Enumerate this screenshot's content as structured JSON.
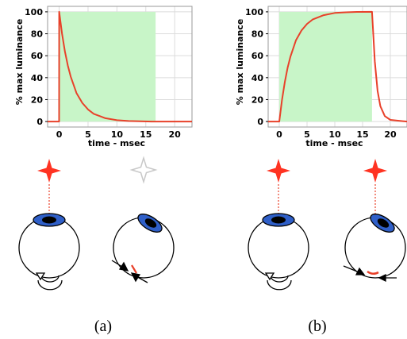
{
  "colors": {
    "trace": "#e8412a",
    "frame_window": "#c8f5c8",
    "grid": "#dcdcdc",
    "star_red": "#ff3322",
    "star_gray": "#c8c8c8",
    "iris": "#2f5fc8",
    "pupil": "#000000"
  },
  "chart_data": [
    {
      "type": "line",
      "panel": "(a)",
      "xlabel": "time - msec",
      "ylabel": "% max luminance",
      "xlim": [
        -2,
        23
      ],
      "ylim": [
        -5,
        105
      ],
      "x_ticks": [
        "0",
        "5",
        "10",
        "15",
        "20"
      ],
      "y_ticks": [
        "0",
        "20",
        "40",
        "60",
        "80",
        "100"
      ],
      "grid": true,
      "shaded_region": {
        "x_start": 0,
        "x_end": 16.7,
        "y_start": 0,
        "y_end": 100
      },
      "x": [
        -2,
        -0.01,
        0,
        0.5,
        1,
        1.5,
        2,
        3,
        4,
        5,
        6,
        8,
        10,
        12,
        16,
        23
      ],
      "y": [
        0,
        0,
        100,
        80,
        64,
        51,
        41,
        26,
        17,
        11,
        7,
        3,
        1.2,
        0.5,
        0,
        0
      ]
    },
    {
      "type": "line",
      "panel": "(b)",
      "xlabel": "time - msec",
      "ylabel": "% max luminance",
      "xlim": [
        -2,
        23
      ],
      "ylim": [
        -5,
        105
      ],
      "x_ticks": [
        "0",
        "5",
        "10",
        "15",
        "20"
      ],
      "y_ticks": [
        "0",
        "20",
        "40",
        "60",
        "80",
        "100"
      ],
      "grid": true,
      "shaded_region": {
        "x_start": 0,
        "x_end": 16.7,
        "y_start": 0,
        "y_end": 100
      },
      "x": [
        -2,
        -0.01,
        0,
        0.5,
        1,
        1.5,
        2,
        3,
        4,
        5,
        6,
        8,
        10,
        12,
        14,
        16.7,
        17.2,
        17.7,
        18.2,
        19,
        20,
        23
      ],
      "y": [
        0,
        0,
        0,
        20,
        36,
        49,
        59,
        74,
        83,
        89,
        93,
        97,
        99,
        99.6,
        99.9,
        100,
        55,
        28,
        14,
        5,
        1.5,
        0
      ]
    }
  ],
  "labels": {
    "a": "(a)",
    "b": "(b)"
  },
  "icons": {
    "stimulus": "four-point-star-icon",
    "eye": "eye-icon",
    "rotation": "rotation-arrow-icon"
  }
}
